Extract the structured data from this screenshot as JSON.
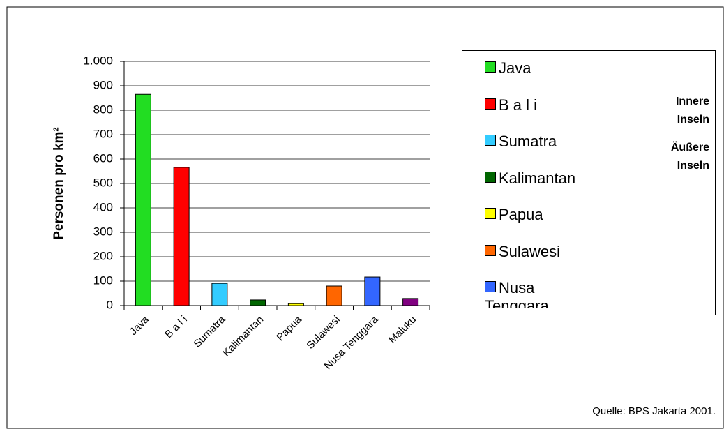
{
  "chart_data": {
    "type": "bar",
    "y_label": "Personen pro km²",
    "categories": [
      "Java",
      "B a l i",
      "Sumatra",
      "Kalimantan",
      "Papua",
      "Sulawesi",
      "Nusa Tenggara",
      "Maluku"
    ],
    "values": [
      865,
      566,
      91,
      23,
      8,
      80,
      117,
      29
    ],
    "colors": [
      "#22dd22",
      "#ff0000",
      "#33ccff",
      "#006600",
      "#ffff00",
      "#ff6600",
      "#3366ff",
      "#800080"
    ],
    "ylim": [
      0,
      1000
    ],
    "yticks": [
      0,
      100,
      200,
      300,
      400,
      500,
      600,
      700,
      800,
      900,
      {
        "value": 1000,
        "label": "1.000"
      }
    ],
    "grid": true,
    "legend_groups": [
      "Innere Inseln",
      "Äußere Inseln"
    ],
    "source": "Quelle: BPS Jakarta 2001."
  }
}
